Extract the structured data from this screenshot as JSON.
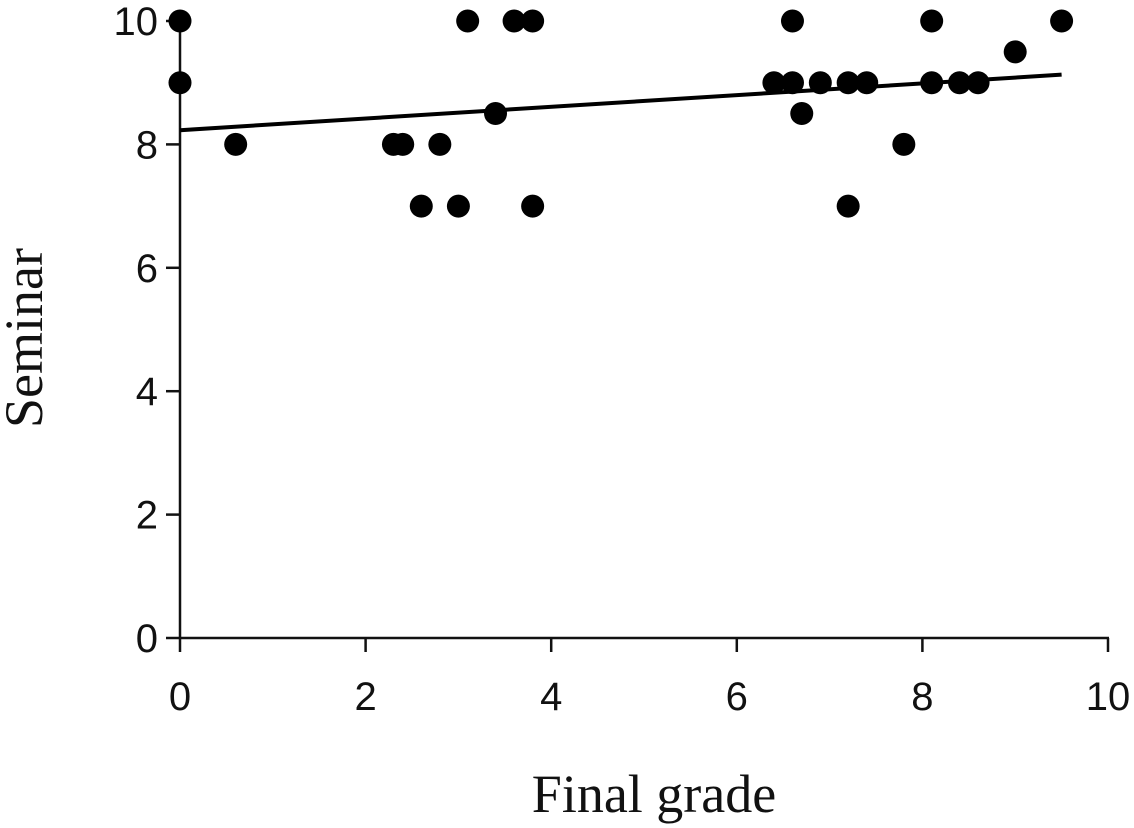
{
  "chart_data": {
    "type": "scatter",
    "xlabel": "Final grade",
    "ylabel": "Seminar",
    "xlim": [
      0,
      10
    ],
    "ylim": [
      0,
      10
    ],
    "x_ticks": [
      0,
      2,
      4,
      6,
      8,
      10
    ],
    "y_ticks": [
      0,
      2,
      4,
      6,
      8,
      10
    ],
    "x_tick_labels": [
      "0",
      "2",
      "4",
      "6",
      "8",
      "10"
    ],
    "y_tick_labels": [
      "0",
      "2",
      "4",
      "6",
      "8",
      "10"
    ],
    "grid": false,
    "colors": {
      "points": "#000000",
      "line": "#000000",
      "axis": "#111111"
    },
    "points": [
      {
        "x": 0.0,
        "y": 10
      },
      {
        "x": 0.0,
        "y": 9
      },
      {
        "x": 0.6,
        "y": 8
      },
      {
        "x": 2.3,
        "y": 8
      },
      {
        "x": 2.4,
        "y": 8
      },
      {
        "x": 2.6,
        "y": 7
      },
      {
        "x": 2.8,
        "y": 8
      },
      {
        "x": 3.0,
        "y": 7
      },
      {
        "x": 3.1,
        "y": 10
      },
      {
        "x": 3.4,
        "y": 8.5
      },
      {
        "x": 3.6,
        "y": 10
      },
      {
        "x": 3.8,
        "y": 10
      },
      {
        "x": 3.8,
        "y": 7
      },
      {
        "x": 6.4,
        "y": 9
      },
      {
        "x": 6.6,
        "y": 10
      },
      {
        "x": 6.6,
        "y": 9
      },
      {
        "x": 6.7,
        "y": 8.5
      },
      {
        "x": 6.9,
        "y": 9
      },
      {
        "x": 7.2,
        "y": 9
      },
      {
        "x": 7.2,
        "y": 7
      },
      {
        "x": 7.4,
        "y": 9
      },
      {
        "x": 7.8,
        "y": 8
      },
      {
        "x": 8.1,
        "y": 10
      },
      {
        "x": 8.1,
        "y": 9
      },
      {
        "x": 8.4,
        "y": 9
      },
      {
        "x": 8.6,
        "y": 9
      },
      {
        "x": 9.0,
        "y": 9.5
      },
      {
        "x": 9.5,
        "y": 10
      }
    ],
    "trendline": {
      "type": "linear",
      "x": [
        0,
        9.5
      ],
      "y": [
        8.23,
        9.13
      ]
    }
  }
}
